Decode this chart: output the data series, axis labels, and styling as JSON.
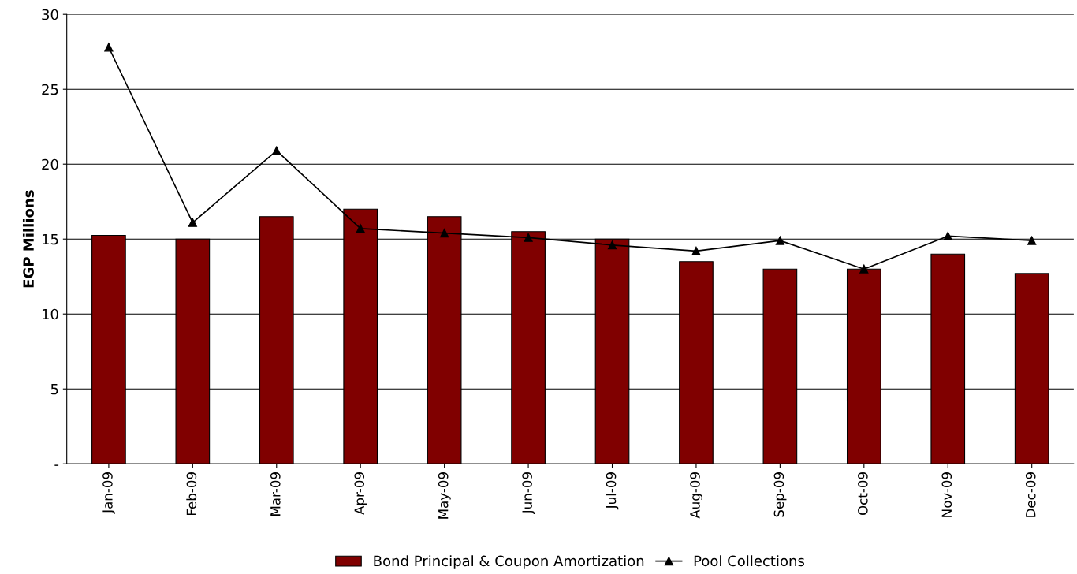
{
  "chart_data": {
    "type": "bar",
    "ylabel": "EGP Millions",
    "categories": [
      "Jan-09",
      "Feb-09",
      "Mar-09",
      "Apr-09",
      "May-09",
      "Jun-09",
      "Jul-09",
      "Aug-09",
      "Sep-09",
      "Oct-09",
      "Nov-09",
      "Dec-09"
    ],
    "series": [
      {
        "name": "Bond Principal & Coupon Amortization",
        "color": "#800000",
        "values": [
          15.25,
          15.0,
          16.5,
          17.0,
          16.5,
          15.5,
          15.0,
          13.5,
          13.0,
          13.0,
          14.0,
          12.7
        ]
      },
      {
        "name": "Pool Collections",
        "type": "line",
        "color": "#000000",
        "marker": "triangle",
        "values": [
          27.8,
          16.1,
          20.9,
          15.7,
          15.4,
          15.1,
          14.6,
          14.2,
          14.9,
          13.0,
          15.2,
          14.9
        ]
      }
    ],
    "ylim": [
      0,
      30
    ],
    "yticks": [
      {
        "value": 0,
        "label": "-"
      },
      5,
      10,
      15,
      20,
      25,
      30
    ],
    "grid": "y",
    "legend": "bottom"
  }
}
